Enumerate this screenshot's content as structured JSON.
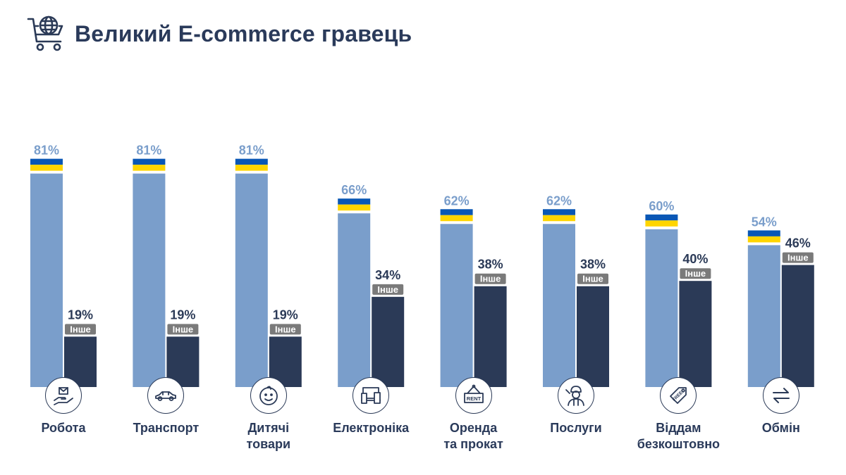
{
  "header": {
    "title": "Великий E-commerce гравець",
    "icon": "globe-cart-icon"
  },
  "colors": {
    "ukraine_bar": "#7a9ecb",
    "other_bar": "#2b3a57",
    "flag_blue": "#0a57b5",
    "flag_yellow": "#ffd500",
    "other_tag": "#7a7a7a",
    "title": "#2a3a5a"
  },
  "chart_data": {
    "type": "bar",
    "title": "Великий E-commerce гравець",
    "xlabel": "",
    "ylabel": "",
    "ylim": [
      0,
      100
    ],
    "grid": false,
    "categories": [
      "Робота",
      "Транспорт",
      "Дитячі\nтовари",
      "Електроніка",
      "Оренда\nта прокат",
      "Послуги",
      "Віддам\nбезкоштовно",
      "Обмін"
    ],
    "category_icons": [
      "hand-envelope-icon",
      "car-icon",
      "baby-face-icon",
      "devices-icon",
      "rent-sign-icon",
      "worker-icon",
      "free-tag-icon",
      "exchange-arrows-icon"
    ],
    "series": [
      {
        "values": [
          81,
          81,
          81,
          66,
          62,
          62,
          60,
          54
        ],
        "marker": "ukraine-flag"
      },
      {
        "name": "Інше",
        "values": [
          19,
          19,
          19,
          34,
          38,
          38,
          40,
          46
        ]
      }
    ],
    "value_suffix": "%"
  }
}
